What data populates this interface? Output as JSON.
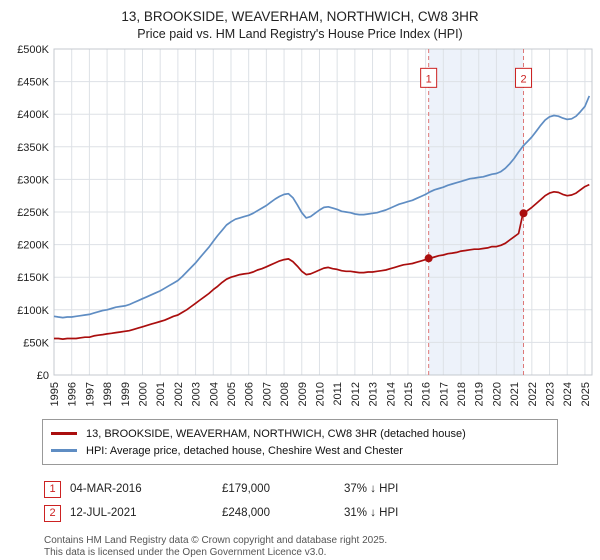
{
  "chart_data": {
    "type": "line",
    "title": "13, BROOKSIDE, WEAVERHAM, NORTHWICH, CW8 3HR",
    "subtitle": "Price paid vs. HM Land Registry's House Price Index (HPI)",
    "xlim": [
      1995,
      2025.4
    ],
    "ylim": [
      0,
      500
    ],
    "y_unit": "GBP thousands",
    "grid": true,
    "legend_position": "bottom",
    "x_ticks": [
      1995,
      1996,
      1997,
      1998,
      1999,
      2000,
      2001,
      2002,
      2003,
      2004,
      2005,
      2006,
      2007,
      2008,
      2009,
      2010,
      2011,
      2012,
      2013,
      2014,
      2015,
      2016,
      2017,
      2018,
      2019,
      2020,
      2021,
      2022,
      2023,
      2024,
      2025
    ],
    "y_ticks": [
      [
        0,
        "£0"
      ],
      [
        50,
        "£50K"
      ],
      [
        100,
        "£100K"
      ],
      [
        150,
        "£150K"
      ],
      [
        200,
        "£200K"
      ],
      [
        250,
        "£250K"
      ],
      [
        300,
        "£300K"
      ],
      [
        350,
        "£350K"
      ],
      [
        400,
        "£400K"
      ],
      [
        450,
        "£450K"
      ],
      [
        500,
        "£500K"
      ]
    ],
    "shaded_region": {
      "from": 2016.17,
      "to": 2021.53,
      "color": "#edf2fa"
    },
    "grid_color": "#dde1e6",
    "border_color": "#c4c9cf",
    "dashed_line_color": "#dd7777",
    "series": [
      {
        "id": "price-paid",
        "name": "13, BROOKSIDE, WEAVERHAM, NORTHWICH, CW8 3HR (detached house)",
        "color": "#aa0e0e",
        "x_start": 1995,
        "x_step": 0.25,
        "values_k": [
          56,
          56,
          55,
          56,
          56,
          56,
          57,
          58,
          58,
          60,
          61,
          62,
          63,
          64,
          65,
          66,
          67,
          68,
          70,
          72,
          74,
          76,
          78,
          80,
          82,
          84,
          87,
          90,
          92,
          96,
          100,
          105,
          110,
          115,
          120,
          125,
          131,
          136,
          142,
          147,
          150,
          152,
          154,
          155,
          156,
          158,
          161,
          163,
          166,
          169,
          172,
          175,
          177,
          178,
          174,
          167,
          159,
          154,
          155,
          158,
          161,
          164,
          165,
          163,
          162,
          160,
          159,
          159,
          158,
          157,
          157,
          158,
          158,
          159,
          160,
          161,
          163,
          165,
          167,
          169,
          170,
          171,
          173,
          175,
          177,
          179,
          181,
          183,
          184,
          186,
          187,
          188,
          190,
          191,
          192,
          193,
          193,
          194,
          195,
          197,
          197,
          199,
          202,
          207,
          212,
          217,
          248,
          252,
          257,
          263,
          269,
          275,
          279,
          281,
          280,
          277,
          275,
          276,
          279,
          284,
          289,
          292
        ]
      },
      {
        "id": "hpi",
        "name": "HPI: Average price, detached house, Cheshire West and Chester",
        "color": "#5f8dc3",
        "x_start": 1995,
        "x_step": 0.25,
        "values_k": [
          90,
          89,
          88,
          89,
          89,
          90,
          91,
          92,
          93,
          95,
          97,
          99,
          100,
          102,
          104,
          105,
          106,
          108,
          111,
          114,
          117,
          120,
          123,
          126,
          129,
          133,
          137,
          141,
          145,
          151,
          158,
          165,
          172,
          180,
          188,
          196,
          205,
          214,
          222,
          230,
          235,
          239,
          241,
          243,
          245,
          248,
          252,
          256,
          260,
          265,
          270,
          274,
          277,
          278,
          272,
          261,
          249,
          241,
          243,
          248,
          253,
          257,
          258,
          256,
          254,
          251,
          250,
          249,
          247,
          246,
          246,
          247,
          248,
          249,
          251,
          253,
          256,
          259,
          262,
          264,
          266,
          268,
          271,
          274,
          277,
          281,
          284,
          286,
          288,
          291,
          293,
          295,
          297,
          299,
          301,
          302,
          303,
          304,
          306,
          308,
          309,
          312,
          317,
          324,
          332,
          342,
          351,
          358,
          365,
          374,
          383,
          391,
          396,
          398,
          397,
          394,
          392,
          393,
          397,
          404,
          412,
          428
        ]
      }
    ],
    "markers": [
      {
        "label": "1",
        "x": 2016.17,
        "y_k": 179
      },
      {
        "label": "2",
        "x": 2021.53,
        "y_k": 248
      }
    ]
  },
  "sales": [
    {
      "num": "1",
      "date": "04-MAR-2016",
      "price": "£179,000",
      "hpi_diff": "37% ↓ HPI"
    },
    {
      "num": "2",
      "date": "12-JUL-2021",
      "price": "£248,000",
      "hpi_diff": "31% ↓ HPI"
    }
  ],
  "footer": {
    "line1": "Contains HM Land Registry data © Crown copyright and database right 2025.",
    "line2": "This data is licensed under the Open Government Licence v3.0."
  }
}
